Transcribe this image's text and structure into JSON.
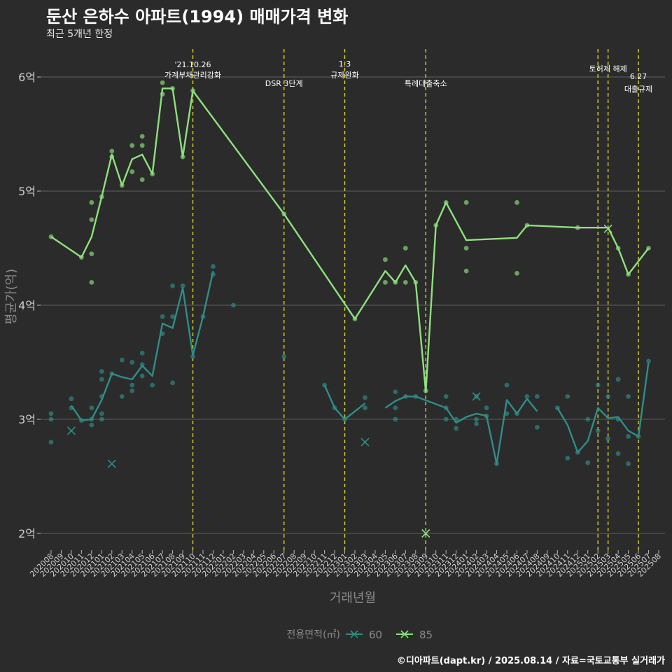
{
  "title": "둔산 은하수 아파트(1994) 매매가격 변화",
  "subtitle": "최근 5개년 한정",
  "caption": "©디아파트(dapt.kr) / 2025.08.14 / 자료=국토교통부 실거래가",
  "colors": {
    "background": "#2b2b2b",
    "grid": "#555555",
    "series_60": "#2f8d87",
    "series_85": "#8ee07e",
    "event_line": "#d6d62a"
  },
  "chart_data": {
    "type": "line",
    "xlabel": "거래년월",
    "ylabel": "평균가(억)",
    "ylim": [
      1.8,
      6.3
    ],
    "y_ticks": [
      2,
      3,
      4,
      5,
      6
    ],
    "y_tick_labels": [
      "2억",
      "3억",
      "4억",
      "5억",
      "6억"
    ],
    "x": [
      "202008",
      "202009",
      "202010",
      "202011",
      "202012",
      "202101",
      "202102",
      "202103",
      "202104",
      "202105",
      "202106",
      "202107",
      "202108",
      "202109",
      "202110",
      "202111",
      "202112",
      "202201",
      "202202",
      "202203",
      "202204",
      "202205",
      "202206",
      "202207",
      "202208",
      "202209",
      "202210",
      "202211",
      "202212",
      "202301",
      "202302",
      "202303",
      "202304",
      "202305",
      "202306",
      "202307",
      "202308",
      "202309",
      "202310",
      "202311",
      "202312",
      "202401",
      "202402",
      "202403",
      "202404",
      "202405",
      "202406",
      "202407",
      "202408",
      "202409",
      "202410",
      "202411",
      "202412",
      "202501",
      "202502",
      "202503",
      "202504",
      "202505",
      "202506",
      "202507",
      "202508"
    ],
    "legend_title": "전용면적(㎡)",
    "legend_position": "bottom",
    "grid": true,
    "series": [
      {
        "name": "60",
        "color": "#2f8d87",
        "line": [
          [
            [
              0,
              null
            ],
            [
              1,
              null
            ],
            [
              2,
              3.12
            ],
            [
              3,
              2.99
            ],
            [
              4,
              3.0
            ],
            [
              5,
              3.17
            ],
            [
              6,
              3.4
            ],
            [
              7,
              3.37
            ],
            [
              8,
              3.35
            ],
            [
              9,
              3.47
            ],
            [
              10,
              3.38
            ],
            [
              11,
              3.84
            ],
            [
              12,
              3.8
            ],
            [
              13,
              4.15
            ],
            [
              14,
              3.56
            ],
            [
              15,
              3.9
            ],
            [
              16,
              4.3
            ]
          ],
          [
            [
              27,
              3.3
            ],
            [
              28,
              3.1
            ],
            [
              29,
              3.0
            ],
            [
              31,
              3.14
            ]
          ],
          [
            [
              33,
              3.1
            ],
            [
              34,
              3.16
            ],
            [
              35,
              3.2
            ],
            [
              36,
              3.2
            ],
            [
              39,
              3.1
            ],
            [
              40,
              2.97
            ],
            [
              41,
              3.02
            ],
            [
              42,
              3.05
            ],
            [
              43,
              3.03
            ],
            [
              44,
              2.61
            ],
            [
              45,
              3.17
            ],
            [
              46,
              3.05
            ],
            [
              47,
              3.18
            ],
            [
              48,
              3.07
            ]
          ],
          [
            [
              50,
              3.1
            ],
            [
              51,
              2.95
            ],
            [
              52,
              2.71
            ],
            [
              53,
              2.81
            ],
            [
              54,
              3.1
            ],
            [
              55,
              3.01
            ],
            [
              56,
              3.02
            ],
            [
              57,
              2.9
            ],
            [
              58,
              2.85
            ],
            [
              59,
              3.5
            ]
          ]
        ],
        "points": [
          [
            0,
            3.05
          ],
          [
            0,
            3.0
          ],
          [
            0,
            2.8
          ],
          [
            2,
            3.18
          ],
          [
            2,
            3.1
          ],
          [
            3,
            2.99
          ],
          [
            4,
            2.95
          ],
          [
            4,
            3.1
          ],
          [
            4,
            3.0
          ],
          [
            5,
            3.42
          ],
          [
            5,
            3.35
          ],
          [
            5,
            3.05
          ],
          [
            5,
            3.0
          ],
          [
            5,
            3.2
          ],
          [
            6,
            3.4
          ],
          [
            7,
            3.52
          ],
          [
            7,
            3.2
          ],
          [
            8,
            3.5
          ],
          [
            8,
            3.3
          ],
          [
            8,
            3.25
          ],
          [
            9,
            3.58
          ],
          [
            9,
            3.48
          ],
          [
            9,
            3.38
          ],
          [
            10,
            3.3
          ],
          [
            11,
            3.9
          ],
          [
            11,
            3.75
          ],
          [
            12,
            4.17
          ],
          [
            12,
            3.32
          ],
          [
            12,
            3.9
          ],
          [
            13,
            4.17
          ],
          [
            14,
            3.55
          ],
          [
            15,
            3.9
          ],
          [
            16,
            4.34
          ],
          [
            16,
            4.27
          ],
          [
            18,
            4.0
          ],
          [
            23,
            3.55
          ],
          [
            27,
            3.3
          ],
          [
            28,
            3.1
          ],
          [
            29,
            3.0
          ],
          [
            31,
            3.19
          ],
          [
            31,
            3.1
          ],
          [
            34,
            3.24
          ],
          [
            34,
            3.1
          ],
          [
            34,
            3.0
          ],
          [
            35,
            3.2
          ],
          [
            36,
            3.2
          ],
          [
            39,
            3.2
          ],
          [
            39,
            3.1
          ],
          [
            39,
            3.0
          ],
          [
            40,
            2.92
          ],
          [
            40,
            3.0
          ],
          [
            42,
            3.2
          ],
          [
            42,
            3.0
          ],
          [
            42,
            2.96
          ],
          [
            43,
            3.1
          ],
          [
            43,
            3.03
          ],
          [
            44,
            2.61
          ],
          [
            45,
            3.3
          ],
          [
            45,
            3.05
          ],
          [
            46,
            3.05
          ],
          [
            47,
            3.2
          ],
          [
            48,
            3.2
          ],
          [
            48,
            2.93
          ],
          [
            50,
            3.1
          ],
          [
            51,
            3.2
          ],
          [
            51,
            2.66
          ],
          [
            52,
            2.71
          ],
          [
            53,
            2.62
          ],
          [
            53,
            3.0
          ],
          [
            54,
            3.3
          ],
          [
            54,
            2.9
          ],
          [
            55,
            3.2
          ],
          [
            55,
            2.83
          ],
          [
            56,
            3.35
          ],
          [
            56,
            2.7
          ],
          [
            56,
            3.0
          ],
          [
            57,
            3.2
          ],
          [
            57,
            2.85
          ],
          [
            57,
            2.61
          ],
          [
            58,
            2.85
          ],
          [
            59,
            3.51
          ]
        ],
        "cancelled": [
          [
            2,
            2.9
          ],
          [
            6,
            2.61
          ],
          [
            31,
            2.8
          ],
          [
            42,
            3.2
          ]
        ]
      },
      {
        "name": "85",
        "color": "#8ee07e",
        "line": [
          [
            [
              0,
              4.6
            ],
            [
              3,
              4.42
            ],
            [
              4,
              4.6
            ],
            [
              5,
              4.95
            ],
            [
              6,
              5.32
            ],
            [
              7,
              5.05
            ],
            [
              8,
              5.28
            ],
            [
              9,
              5.32
            ],
            [
              10,
              5.15
            ],
            [
              11,
              5.9
            ],
            [
              12,
              5.9
            ],
            [
              13,
              5.3
            ],
            [
              14,
              5.88
            ],
            [
              23,
              4.8
            ],
            [
              30,
              3.88
            ],
            [
              33,
              4.3
            ],
            [
              34,
              4.2
            ],
            [
              35,
              4.35
            ],
            [
              36,
              4.2
            ],
            [
              37,
              3.24
            ],
            [
              38,
              4.7
            ],
            [
              39,
              4.9
            ],
            [
              41,
              4.57
            ],
            [
              46,
              4.59
            ],
            [
              47,
              4.7
            ],
            [
              52,
              4.68
            ],
            [
              55,
              4.68
            ],
            [
              56,
              4.5
            ],
            [
              57,
              4.27
            ],
            [
              59,
              4.5
            ]
          ]
        ],
        "points": [
          [
            0,
            4.6
          ],
          [
            3,
            4.42
          ],
          [
            4,
            4.9
          ],
          [
            4,
            4.75
          ],
          [
            4,
            4.45
          ],
          [
            4,
            4.2
          ],
          [
            5,
            4.95
          ],
          [
            6,
            5.35
          ],
          [
            6,
            5.3
          ],
          [
            7,
            5.05
          ],
          [
            8,
            5.4
          ],
          [
            8,
            5.17
          ],
          [
            9,
            5.48
          ],
          [
            9,
            5.4
          ],
          [
            9,
            5.1
          ],
          [
            10,
            5.15
          ],
          [
            11,
            5.95
          ],
          [
            11,
            5.85
          ],
          [
            12,
            5.9
          ],
          [
            13,
            5.3
          ],
          [
            14,
            5.88
          ],
          [
            23,
            4.8
          ],
          [
            30,
            3.88
          ],
          [
            33,
            4.4
          ],
          [
            33,
            4.2
          ],
          [
            34,
            4.2
          ],
          [
            35,
            4.5
          ],
          [
            35,
            4.2
          ],
          [
            36,
            4.2
          ],
          [
            37,
            3.25
          ],
          [
            38,
            4.7
          ],
          [
            39,
            4.9
          ],
          [
            41,
            4.9
          ],
          [
            41,
            4.5
          ],
          [
            41,
            4.3
          ],
          [
            46,
            4.9
          ],
          [
            46,
            4.28
          ],
          [
            47,
            4.7
          ],
          [
            52,
            4.68
          ],
          [
            56,
            4.5
          ],
          [
            57,
            4.27
          ],
          [
            59,
            4.5
          ]
        ],
        "cancelled": [
          [
            37,
            2.0
          ],
          [
            55,
            4.67
          ]
        ]
      }
    ],
    "events": [
      {
        "x": 14.0,
        "lines": [
          "'21.10.26",
          "가계부채관리강화"
        ]
      },
      {
        "x": 23.0,
        "lines": [
          "DSR 3단계"
        ]
      },
      {
        "x": 29.0,
        "lines": [
          "1.3",
          "규제완화"
        ]
      },
      {
        "x": 37.0,
        "lines": [
          "특례대출축소"
        ]
      },
      {
        "x": 54.0,
        "lines": []
      },
      {
        "x": 55.0,
        "lines": [
          "토허제 해제"
        ]
      },
      {
        "x": 58.0,
        "lines": [
          "6.27",
          "대출규제"
        ]
      }
    ]
  }
}
